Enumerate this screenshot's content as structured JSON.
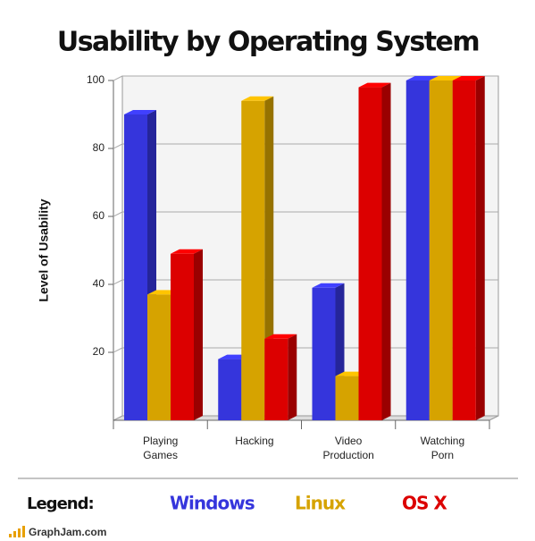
{
  "chart_data": {
    "type": "bar3d",
    "title": "Usability by Operating System",
    "y_label": "Level of Usability",
    "categories": [
      "Playing Games",
      "Hacking",
      "Video Production",
      "Watching Porn"
    ],
    "series": [
      {
        "name": "Windows",
        "color": "#3535dc",
        "values": [
          90,
          18,
          39,
          100
        ]
      },
      {
        "name": "Linux",
        "color": "#d6a300",
        "values": [
          37,
          94,
          13,
          100
        ]
      },
      {
        "name": "OS X",
        "color": "#dc0000",
        "values": [
          49,
          24,
          98,
          100
        ]
      }
    ],
    "ylim": [
      0,
      100
    ],
    "yticks": [
      20,
      40,
      60,
      80,
      100
    ],
    "grid": true,
    "legend_title": "Legend:",
    "footer": "GraphJam.com"
  }
}
